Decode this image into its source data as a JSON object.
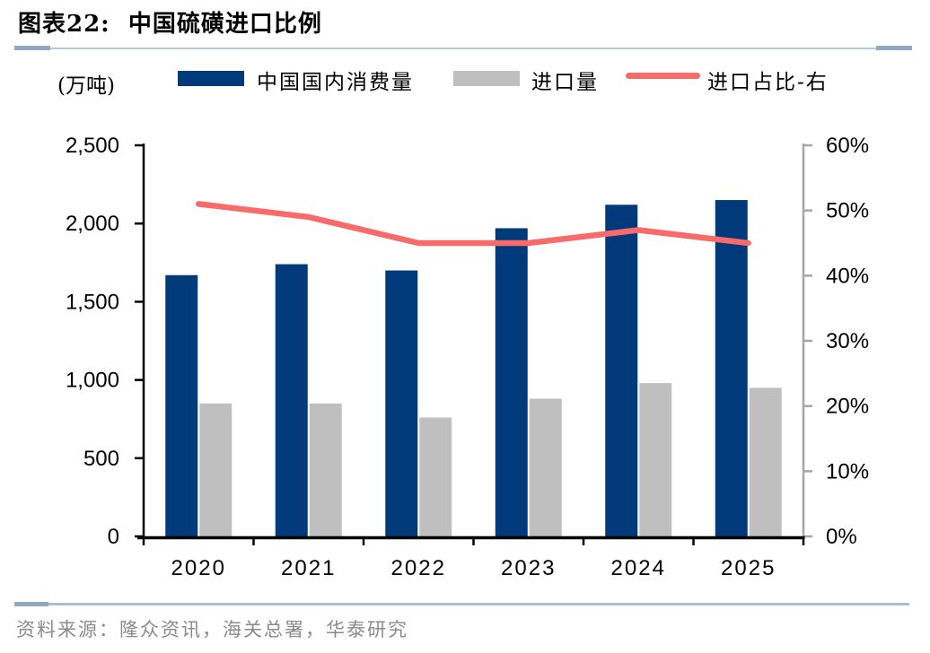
{
  "page": {
    "title": "图表22:  中国硫磺进口比例",
    "source": "资料来源：隆众资讯，海关总署，华泰研究"
  },
  "chart_data": {
    "type": "bar+line",
    "title": "中国硫磺进口比例",
    "unit_label": "(万吨)",
    "categories": [
      "2020",
      "2021",
      "2022",
      "2023",
      "2024",
      "2025"
    ],
    "series": [
      {
        "name": "中国国内消费量",
        "type": "bar",
        "axis": "left",
        "color": "#003a7a",
        "values": [
          1670,
          1740,
          1700,
          1970,
          2120,
          2150
        ]
      },
      {
        "name": "进口量",
        "type": "bar",
        "axis": "left",
        "color": "#bfbfbf",
        "values": [
          850,
          850,
          760,
          880,
          980,
          950
        ]
      },
      {
        "name": "进口占比-右",
        "type": "line",
        "axis": "right",
        "color": "#f96b6b",
        "values": [
          51,
          49,
          45,
          45,
          47,
          45
        ],
        "unit": "%"
      }
    ],
    "left_axis": {
      "min": 0,
      "max": 2500,
      "step": 500,
      "tick_labels": [
        "0",
        "500",
        "1,000",
        "1,500",
        "2,000",
        "2,500"
      ]
    },
    "right_axis": {
      "min": 0,
      "max": 60,
      "step": 10,
      "tick_labels": [
        "0%",
        "10%",
        "20%",
        "30%",
        "40%",
        "50%",
        "60%"
      ]
    },
    "legend_position": "top",
    "grid": false,
    "colors": {
      "x_axis": "#000000",
      "left_axis": "#000000",
      "right_axis": "#a6a6a6",
      "rule_accent": "#90a8c2",
      "rule_light": "#aabdd3"
    }
  }
}
